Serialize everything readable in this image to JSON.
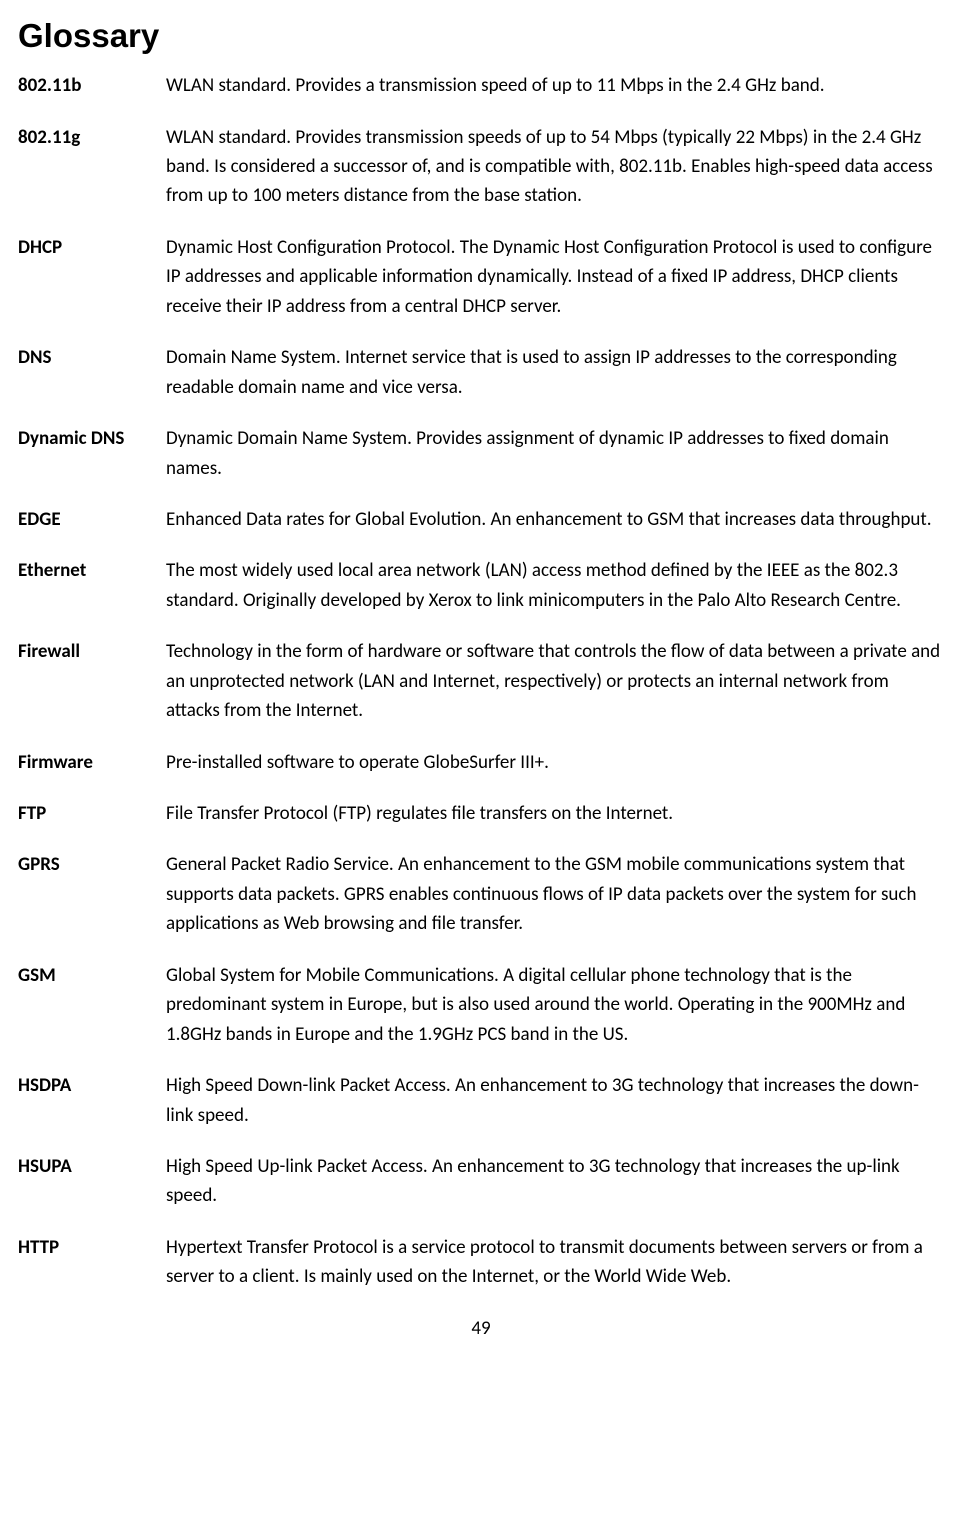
{
  "title": "Glossary",
  "page_number": "49",
  "entries": [
    {
      "term": "802.11b",
      "def": "WLAN standard. Provides a transmission speed of up to 11 Mbps in the 2.4 GHz band."
    },
    {
      "term": "802.11g",
      "def": "WLAN standard. Provides transmission speeds of up to 54 Mbps (typically 22 Mbps) in the 2.4 GHz band. Is considered a successor of, and is compatible with, 802.11b. Enables high-speed data access from up to 100 meters distance from the base station."
    },
    {
      "term": "DHCP",
      "def": "Dynamic Host Configuration Protocol. The Dynamic Host Configuration Protocol is used to configure IP addresses and applicable information dynamically. Instead of a fixed IP address, DHCP clients receive their IP address from a central DHCP server."
    },
    {
      "term": "DNS",
      "def": "Domain Name System. Internet service that is used to assign IP addresses to the corresponding readable domain name and vice versa."
    },
    {
      "term": "Dynamic DNS",
      "def": "Dynamic Domain Name System. Provides assignment of dynamic IP addresses to fixed domain names."
    },
    {
      "term": "EDGE",
      "def": "Enhanced Data rates for Global Evolution. An enhancement to GSM that increases data throughput."
    },
    {
      "term": "Ethernet",
      "def": "The most widely used local area network (LAN) access method defined by the IEEE as the 802.3 standard. Originally developed by Xerox to link minicomputers in the Palo Alto Research Centre."
    },
    {
      "term": "Firewall",
      "def": "Technology in the form of hardware or software that controls the flow of data between a private and an unprotected network (LAN and Internet, respectively) or protects an internal network from attacks from the Internet."
    },
    {
      "term": "Firmware",
      "def": "Pre-installed software to operate GlobeSurfer III+."
    },
    {
      "term": "FTP",
      "def": "File Transfer Protocol (FTP) regulates file transfers on the Internet."
    },
    {
      "term": "GPRS",
      "def": "General Packet Radio Service. An enhancement to the GSM mobile communications system that supports data packets. GPRS enables continuous flows of IP data packets over the system for such applications as Web browsing and file transfer."
    },
    {
      "term": "GSM",
      "def": "Global System for Mobile Communications. A digital cellular phone technology that is the predominant system in Europe, but is also used around the world. Operating in the 900MHz and 1.8GHz bands in Europe and the 1.9GHz PCS band in the US."
    },
    {
      "term": "HSDPA",
      "def": "High Speed Down-link Packet Access. An enhancement to 3G technology that increases the down-link speed."
    },
    {
      "term": "HSUPA",
      "def": "High Speed Up-link Packet Access. An enhancement to 3G technology that increases the up-link speed."
    },
    {
      "term": "HTTP",
      "def": "Hypertext Transfer Protocol is a service protocol to transmit documents between servers or from a server to a client. Is mainly used on the Internet, or the World Wide Web."
    }
  ]
}
